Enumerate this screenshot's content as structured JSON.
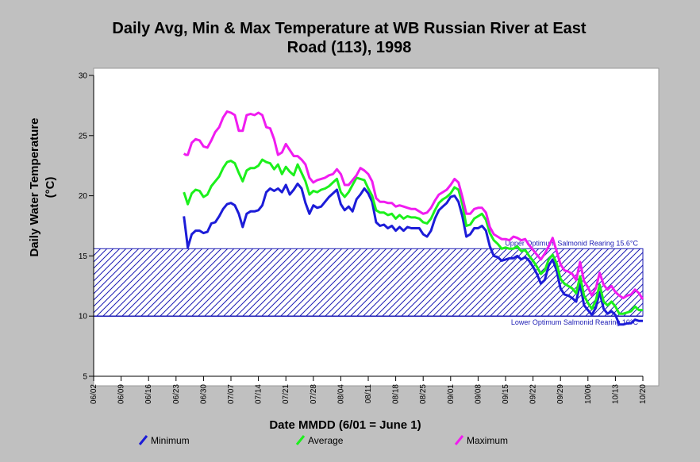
{
  "chart_data": {
    "type": "line",
    "title_lines": [
      "Daily Avg, Min & Max Temperature at WB Russian River at East",
      "Road  (113), 1998"
    ],
    "xlabel": "Date MMDD (6/01 = June 1)",
    "ylabel_lines": [
      "Daily Water Temperature",
      "(°C)"
    ],
    "x_ticks": [
      "06/02",
      "06/09",
      "06/16",
      "06/23",
      "06/30",
      "07/07",
      "07/14",
      "07/21",
      "07/28",
      "08/04",
      "08/11",
      "08/18",
      "08/25",
      "09/01",
      "09/08",
      "09/15",
      "09/22",
      "09/29",
      "10/06",
      "10/13",
      "10/20"
    ],
    "y_ticks": [
      "5",
      "10",
      "15",
      "20",
      "25",
      "30"
    ],
    "ylim": [
      5,
      30
    ],
    "xlim_days": [
      0,
      140
    ],
    "grid": false,
    "band": {
      "lower": 10,
      "upper": 15.6,
      "upper_label": "Upper Optimum Salmonid Rearing 15.6°C",
      "lower_label": "Lower Optimum Salmonid Rearing 10°C",
      "color": "#1c1cb4"
    },
    "series": [
      {
        "name": "Minimum",
        "color": "#1c1cd8",
        "x": [
          23,
          23.5,
          24,
          25,
          26,
          27,
          28,
          29,
          30,
          31,
          32,
          33,
          34,
          35,
          36,
          37,
          38,
          39,
          40,
          41,
          42,
          43,
          44,
          45,
          46,
          47,
          48,
          49,
          50,
          51,
          52,
          53,
          54,
          55,
          56,
          57,
          58,
          59,
          60,
          61,
          62,
          63,
          64,
          65,
          66,
          67,
          68,
          69,
          70,
          71,
          72,
          73,
          74,
          75,
          76,
          77,
          78,
          79,
          80,
          81,
          82,
          83,
          84,
          85,
          86,
          87,
          88,
          89,
          90,
          91,
          92,
          93,
          94,
          95,
          96,
          97,
          98,
          99,
          100,
          101,
          102,
          103,
          104,
          105,
          106,
          107,
          108,
          109,
          110,
          111,
          112,
          113,
          114,
          115,
          116,
          117,
          118,
          119,
          120,
          121,
          122,
          123,
          124,
          125,
          126,
          127,
          128,
          129,
          130,
          131,
          132,
          133,
          134,
          135,
          136,
          137,
          138,
          139,
          140
        ],
        "y": [
          18.3,
          17,
          15.7,
          16.8,
          17.1,
          17.1,
          16.9,
          17,
          17.7,
          17.8,
          18.3,
          18.9,
          19.3,
          19.4,
          19.2,
          18.5,
          17.4,
          18.5,
          18.7,
          18.7,
          18.8,
          19.2,
          20.3,
          20.6,
          20.4,
          20.6,
          20.3,
          20.9,
          20.1,
          20.5,
          21,
          20.6,
          19.4,
          18.5,
          19.2,
          19,
          19.1,
          19.5,
          19.9,
          20.2,
          20.5,
          19.3,
          18.8,
          19.1,
          18.7,
          19.7,
          20.1,
          20.6,
          20.2,
          19.5,
          17.8,
          17.5,
          17.6,
          17.3,
          17.5,
          17.1,
          17.4,
          17.1,
          17.4,
          17.3,
          17.3,
          17.3,
          16.8,
          16.6,
          17.1,
          18.1,
          18.8,
          19.1,
          19.4,
          19.9,
          20,
          19.5,
          18.3,
          16.6,
          16.8,
          17.3,
          17.3,
          17.5,
          17.1,
          15.8,
          15,
          14.9,
          14.6,
          14.7,
          14.8,
          14.8,
          15,
          14.7,
          14.9,
          14.6,
          14.1,
          13.5,
          12.7,
          13,
          14.2,
          14.7,
          13.8,
          12.3,
          11.8,
          11.7,
          11.5,
          11.2,
          12.7,
          10.9,
          10.5,
          10.1,
          10.7,
          12,
          10.6,
          10.2,
          10.4,
          10.1,
          9.3,
          9.3,
          9.4,
          9.4,
          9.7,
          9.6,
          9.6
        ],
        "legend": "Minimum"
      },
      {
        "name": "Average",
        "color": "#1cf01c",
        "x": [
          23,
          23.5,
          24,
          25,
          26,
          27,
          28,
          29,
          30,
          31,
          32,
          33,
          34,
          35,
          36,
          37,
          38,
          39,
          40,
          41,
          42,
          43,
          44,
          45,
          46,
          47,
          48,
          49,
          50,
          51,
          52,
          53,
          54,
          55,
          56,
          57,
          58,
          59,
          60,
          61,
          62,
          63,
          64,
          65,
          66,
          67,
          68,
          69,
          70,
          71,
          72,
          73,
          74,
          75,
          76,
          77,
          78,
          79,
          80,
          81,
          82,
          83,
          84,
          85,
          86,
          87,
          88,
          89,
          90,
          91,
          92,
          93,
          94,
          95,
          96,
          97,
          98,
          99,
          100,
          101,
          102,
          103,
          104,
          105,
          106,
          107,
          108,
          109,
          110,
          111,
          112,
          113,
          114,
          115,
          116,
          117,
          118,
          119,
          120,
          121,
          122,
          123,
          124,
          125,
          126,
          127,
          128,
          129,
          130,
          131,
          132,
          133,
          134,
          135,
          136,
          137,
          138,
          139,
          140
        ],
        "y": [
          20.3,
          19.8,
          19.3,
          20.2,
          20.5,
          20.4,
          19.9,
          20.1,
          20.8,
          21.2,
          21.6,
          22.3,
          22.8,
          22.9,
          22.7,
          21.9,
          21.2,
          22.1,
          22.3,
          22.3,
          22.5,
          23,
          22.8,
          22.7,
          22.2,
          22.6,
          21.8,
          22.4,
          22,
          21.7,
          22.6,
          21.9,
          21.2,
          20.1,
          20.4,
          20.3,
          20.5,
          20.6,
          20.8,
          21.1,
          21.4,
          20.3,
          19.9,
          20.3,
          20.9,
          21.5,
          21.4,
          21.3,
          20.6,
          20,
          18.8,
          18.6,
          18.6,
          18.4,
          18.5,
          18.1,
          18.4,
          18.1,
          18.3,
          18.2,
          18.2,
          18.1,
          17.8,
          17.7,
          18.1,
          18.8,
          19.4,
          19.7,
          19.9,
          20.2,
          20.7,
          20.5,
          19.3,
          17.5,
          17.6,
          18.1,
          18.3,
          18.5,
          18,
          16.9,
          16.3,
          16,
          15.6,
          15.7,
          15.6,
          15.6,
          15.8,
          15.4,
          15.5,
          15,
          14.6,
          14.1,
          13.5,
          13.8,
          14.7,
          15.1,
          14.4,
          13.1,
          12.7,
          12.5,
          12.3,
          11.9,
          13.3,
          11.7,
          11.1,
          10.6,
          11.3,
          12.6,
          11.2,
          10.9,
          11.2,
          10.8,
          10.2,
          10.2,
          10.3,
          10.4,
          10.8,
          10.5,
          10.5
        ],
        "legend": "Average"
      },
      {
        "name": "Maximum",
        "color": "#f01cf0",
        "x": [
          23,
          23.5,
          24,
          25,
          26,
          27,
          28,
          29,
          30,
          31,
          32,
          33,
          34,
          35,
          36,
          37,
          38,
          39,
          40,
          41,
          42,
          43,
          44,
          45,
          46,
          47,
          48,
          49,
          50,
          51,
          52,
          53,
          54,
          55,
          56,
          57,
          58,
          59,
          60,
          61,
          62,
          63,
          64,
          65,
          66,
          67,
          68,
          69,
          70,
          71,
          72,
          73,
          74,
          75,
          76,
          77,
          78,
          79,
          80,
          81,
          82,
          83,
          84,
          85,
          86,
          87,
          88,
          89,
          90,
          91,
          92,
          93,
          94,
          95,
          96,
          97,
          98,
          99,
          100,
          101,
          102,
          103,
          104,
          105,
          106,
          107,
          108,
          109,
          110,
          111,
          112,
          113,
          114,
          115,
          116,
          117,
          118,
          119,
          120,
          121,
          122,
          123,
          124,
          125,
          126,
          127,
          128,
          129,
          130,
          131,
          132,
          133,
          134,
          135,
          136,
          137,
          138,
          139,
          140
        ],
        "y": [
          23.5,
          23.4,
          23.4,
          24.4,
          24.7,
          24.6,
          24.1,
          24,
          24.6,
          25.3,
          25.7,
          26.5,
          27,
          26.9,
          26.7,
          25.4,
          25.4,
          26.7,
          26.8,
          26.7,
          26.9,
          26.7,
          25.7,
          25.6,
          24.7,
          23.4,
          23.6,
          24.3,
          23.8,
          23.3,
          23.3,
          23,
          22.6,
          21.5,
          21.1,
          21.3,
          21.4,
          21.5,
          21.7,
          21.8,
          22.2,
          21.8,
          20.9,
          20.9,
          21.3,
          21.7,
          22.3,
          22.1,
          21.8,
          21.2,
          19.8,
          19.5,
          19.5,
          19.4,
          19.4,
          19.1,
          19.2,
          19.1,
          19,
          18.9,
          18.9,
          18.7,
          18.5,
          18.6,
          19,
          19.6,
          20.1,
          20.3,
          20.5,
          20.9,
          21.4,
          21.1,
          19.9,
          18.5,
          18.5,
          18.9,
          19,
          19,
          18.6,
          17.4,
          16.8,
          16.6,
          16.4,
          16.4,
          16.3,
          16.6,
          16.5,
          16.3,
          16.4,
          15.9,
          15.5,
          15.1,
          14.7,
          15.2,
          15.8,
          16.5,
          15.4,
          14.3,
          13.8,
          13.7,
          13.5,
          13,
          14.5,
          12.9,
          12.4,
          11.7,
          12.3,
          13.6,
          12.6,
          12.2,
          12.5,
          12,
          11.7,
          11.5,
          11.7,
          11.8,
          12.2,
          11.9,
          11.4
        ],
        "legend": "Maximum"
      }
    ]
  }
}
